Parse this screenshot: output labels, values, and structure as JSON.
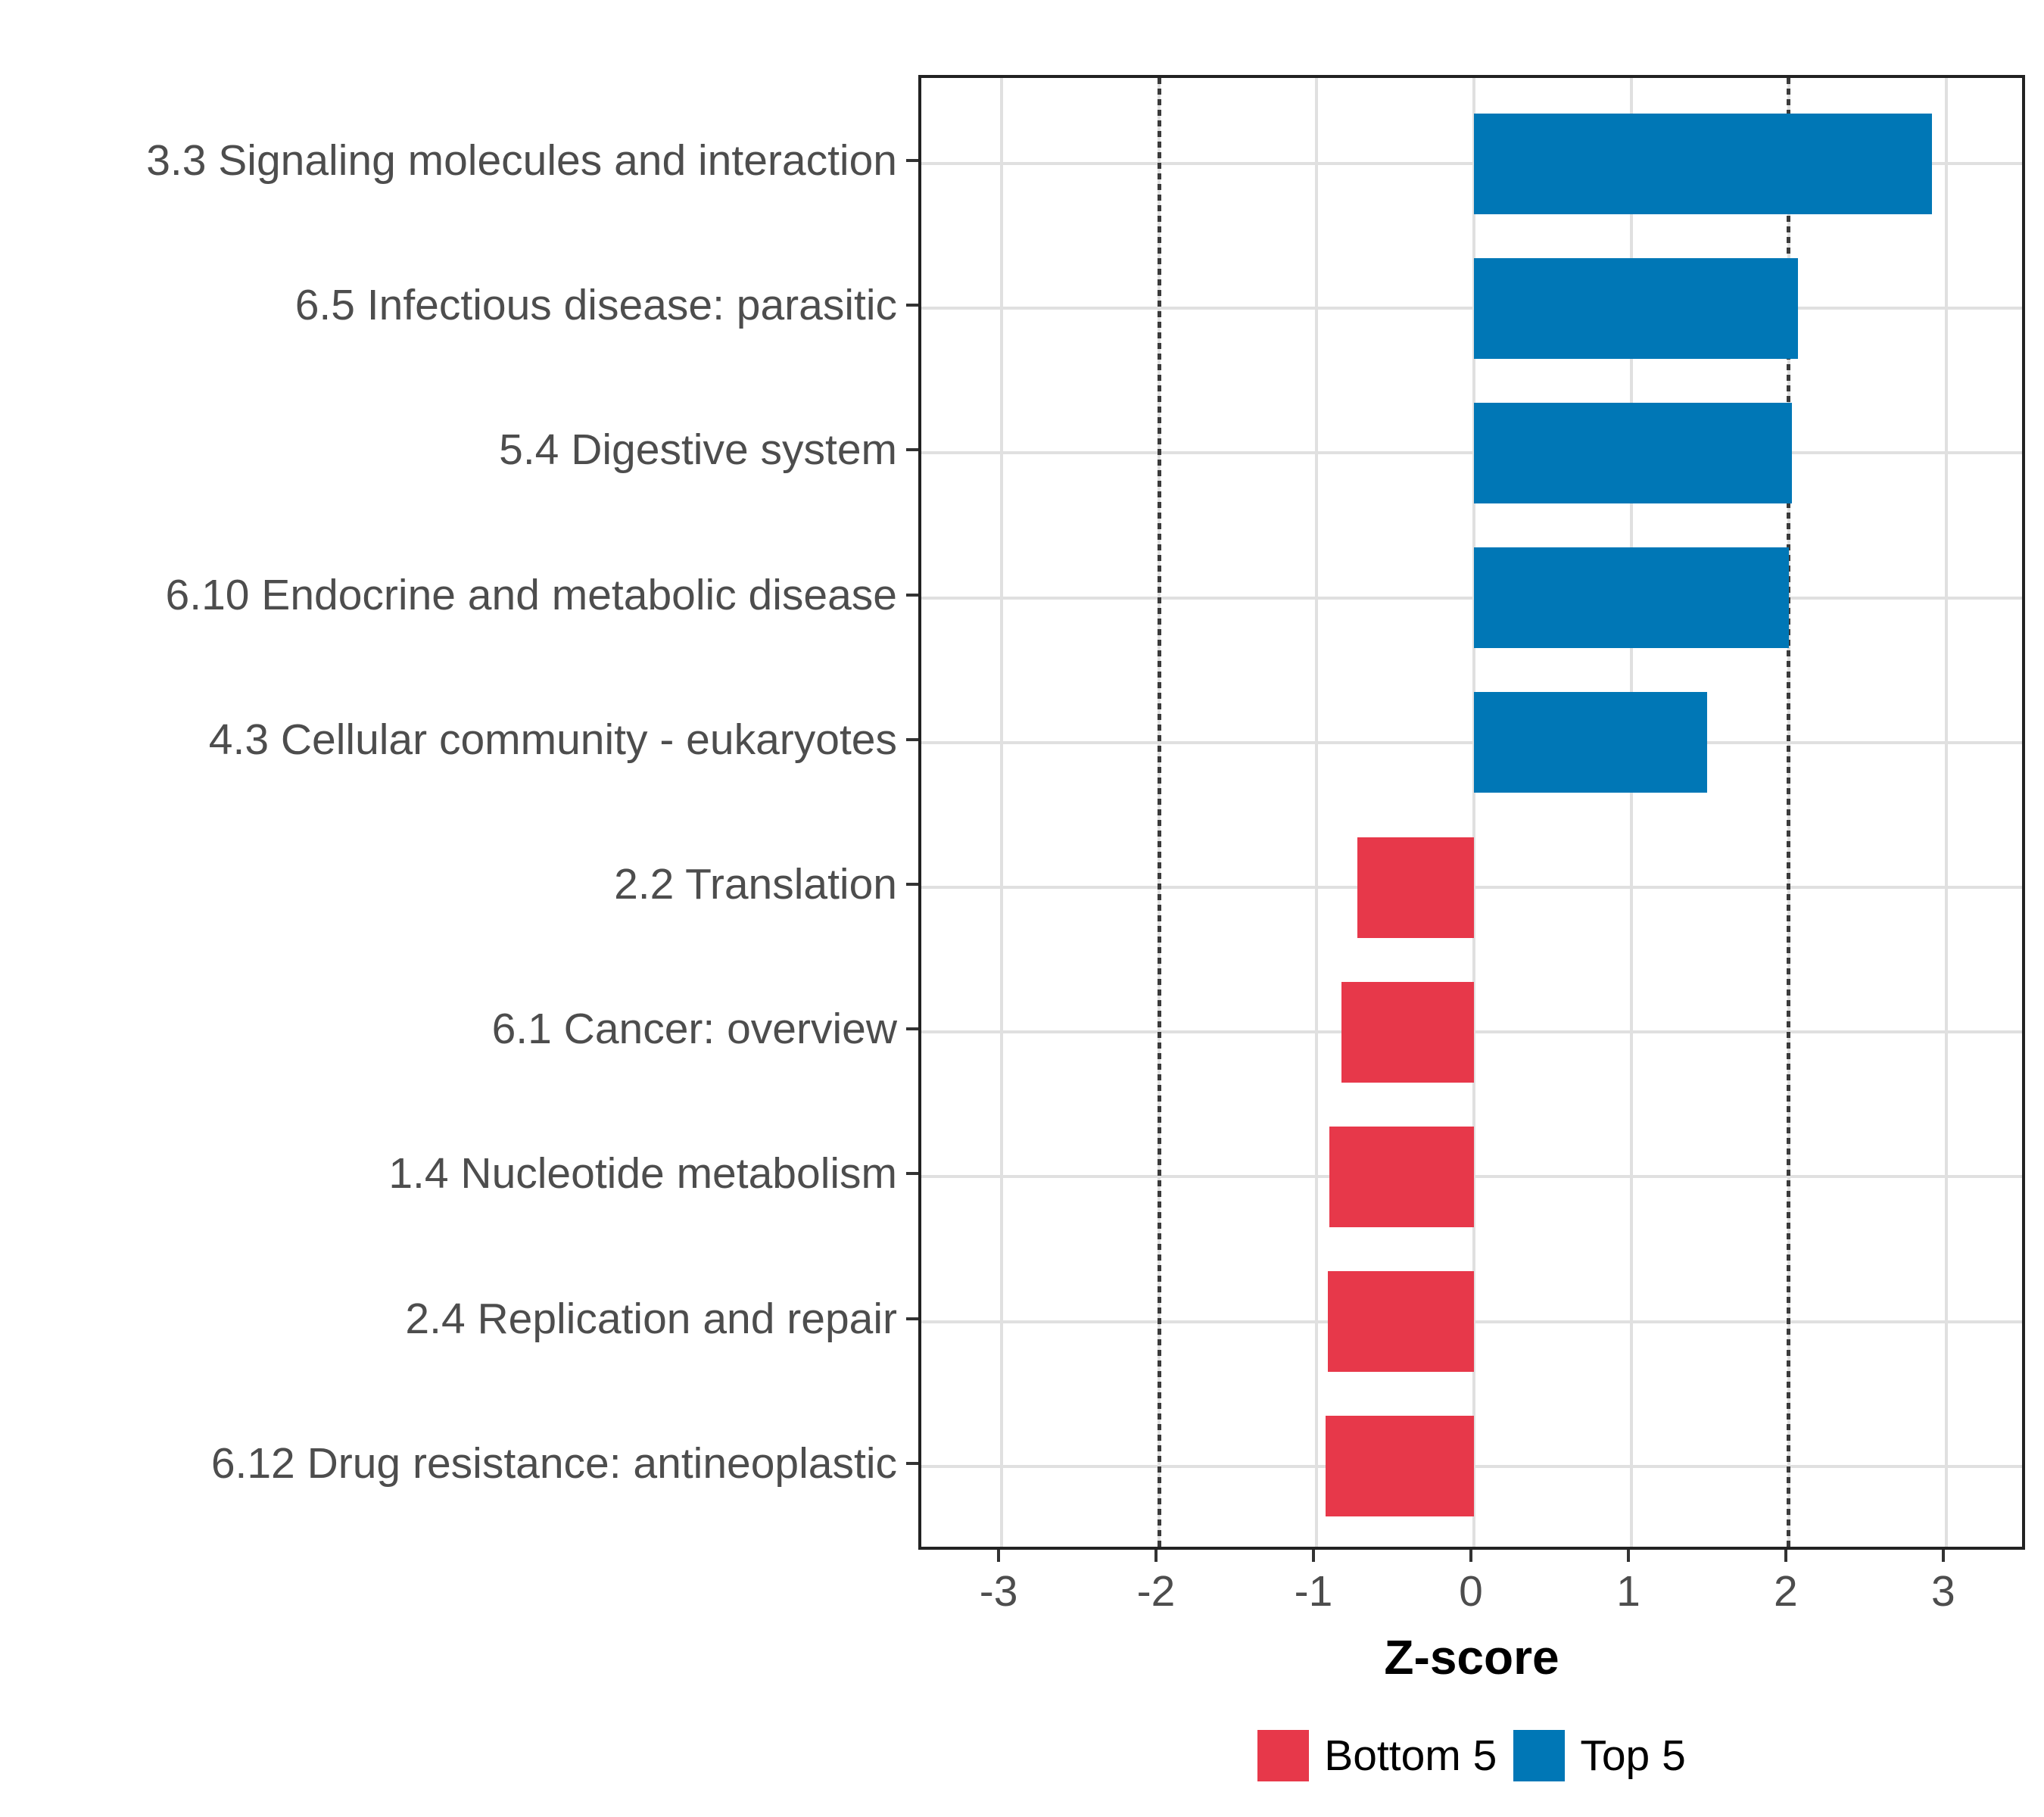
{
  "chart_data": {
    "type": "bar",
    "orientation": "horizontal",
    "title": "",
    "xlabel": "Z-score",
    "ylabel": "",
    "xlim": [
      -3.51,
      3.52
    ],
    "x_ticks": [
      -3,
      -2,
      -1,
      0,
      1,
      2,
      3
    ],
    "x_tick_labels": [
      "-3",
      "-2",
      "-1",
      "0",
      "1",
      "2",
      "3"
    ],
    "reference_lines": [
      -2,
      2
    ],
    "grid": true,
    "legend_position": "bottom",
    "categories": [
      "3.3 Signaling molecules and interaction",
      "6.5 Infectious disease: parasitic",
      "5.4 Digestive system",
      "6.10 Endocrine and metabolic disease",
      "4.3 Cellular community - eukaryotes",
      "2.2 Translation",
      "6.1 Cancer: overview",
      "1.4 Nucleotide metabolism",
      "2.4 Replication and repair",
      "6.12 Drug resistance: antineoplastic"
    ],
    "values": [
      2.91,
      2.06,
      2.02,
      2.0,
      1.48,
      -0.74,
      -0.84,
      -0.92,
      -0.93,
      -0.94
    ],
    "groups": [
      "Top 5",
      "Top 5",
      "Top 5",
      "Top 5",
      "Top 5",
      "Bottom 5",
      "Bottom 5",
      "Bottom 5",
      "Bottom 5",
      "Bottom 5"
    ],
    "colors": {
      "Top 5": "#0077b6",
      "Bottom 5": "#e7384a"
    },
    "legend": [
      {
        "label": "Bottom 5",
        "color": "#e7384a"
      },
      {
        "label": "Top 5",
        "color": "#0077b6"
      }
    ]
  }
}
